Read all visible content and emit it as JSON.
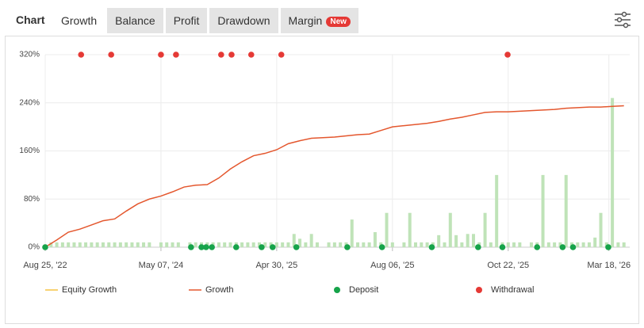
{
  "tabs": {
    "title": "Chart",
    "items": [
      "Growth",
      "Balance",
      "Profit",
      "Drawdown",
      "Margin"
    ],
    "active": 0,
    "badge": "New"
  },
  "chart_data": {
    "type": "line",
    "x": [
      0,
      2,
      4,
      6,
      8,
      10,
      12,
      14,
      16,
      18,
      20,
      22,
      24,
      26,
      28,
      30,
      32,
      34,
      36,
      38,
      40,
      42,
      44,
      46,
      48,
      50,
      52,
      54,
      56,
      58,
      60,
      62,
      64,
      66,
      68,
      70,
      72,
      74,
      76,
      78,
      80,
      82,
      84,
      86,
      88,
      90,
      92,
      94,
      96,
      98,
      100
    ],
    "series": [
      {
        "name": "Equity Growth",
        "color": "#f5c242",
        "values": [
          null,
          null,
          null,
          null,
          null,
          null,
          null,
          null,
          null,
          null,
          null,
          null,
          null,
          null,
          null,
          null,
          null,
          null,
          null,
          null,
          null,
          null,
          null,
          null,
          null,
          null,
          null,
          null,
          null,
          null,
          null,
          null,
          null,
          null,
          null,
          null,
          null,
          null,
          null,
          null,
          null,
          null,
          null,
          null,
          null,
          null,
          null,
          null,
          null,
          null,
          null
        ]
      },
      {
        "name": "Growth",
        "color": "#e4572e",
        "values": [
          0,
          12,
          25,
          30,
          37,
          44,
          47,
          60,
          72,
          80,
          85,
          92,
          100,
          103,
          104,
          115,
          130,
          142,
          152,
          156,
          162,
          172,
          177,
          181,
          182,
          183,
          185,
          187,
          188,
          194,
          200,
          202,
          204,
          206,
          209,
          213,
          216,
          220,
          224,
          225,
          225,
          226,
          227,
          228,
          229,
          231,
          232,
          233,
          233,
          234,
          235
        ]
      }
    ],
    "deposits": {
      "name": "Deposit",
      "color": "#16a34a",
      "x": [
        0,
        25.2,
        27,
        27.8,
        28.8,
        33,
        37.4,
        39.3,
        43.4,
        52.2,
        58.2,
        66.8,
        74.8,
        79,
        85,
        89.4,
        91.2,
        97.3
      ],
      "values": [
        0,
        0,
        0,
        0,
        0,
        0,
        0,
        0,
        0,
        0,
        0,
        0,
        0,
        0,
        0,
        0,
        0,
        0
      ]
    },
    "withdrawals": {
      "name": "Withdrawal",
      "color": "#e53935",
      "x": [
        6.2,
        11.4,
        20,
        22.6,
        30.4,
        32.2,
        35.6,
        40.8,
        79.9
      ],
      "values": [
        320,
        320,
        320,
        320,
        320,
        320,
        320,
        320,
        320
      ]
    },
    "bars": {
      "color": "#bfe3b8",
      "x": [
        1,
        2,
        3,
        4,
        5,
        6,
        7,
        8,
        9,
        10,
        11,
        12,
        13,
        14,
        15,
        16,
        17,
        18,
        19,
        20,
        21,
        22,
        23,
        24,
        25,
        26,
        27,
        28,
        29,
        30,
        31,
        32,
        33,
        34,
        35,
        36,
        37,
        38,
        39,
        40,
        41,
        42,
        43,
        44,
        45,
        46,
        47,
        48,
        49,
        50,
        51,
        52,
        53,
        54,
        55,
        56,
        57,
        58,
        59,
        60,
        61,
        62,
        63,
        64,
        65,
        66,
        67,
        68,
        69,
        70,
        71,
        72,
        73,
        74,
        75,
        76,
        77,
        78,
        79,
        80,
        81,
        82,
        83,
        84,
        85,
        86,
        87,
        88,
        89,
        90,
        91,
        92,
        93,
        94,
        95,
        96,
        97,
        98,
        99,
        100
      ],
      "values": [
        8,
        8,
        8,
        8,
        8,
        8,
        8,
        8,
        8,
        8,
        8,
        8,
        8,
        8,
        8,
        8,
        8,
        8,
        0,
        8,
        8,
        8,
        8,
        0,
        8,
        8,
        8,
        8,
        8,
        8,
        8,
        8,
        8,
        8,
        8,
        8,
        8,
        8,
        8,
        8,
        8,
        8,
        22,
        14,
        8,
        22,
        8,
        0,
        8,
        8,
        8,
        8,
        46,
        8,
        8,
        8,
        25,
        8,
        57,
        8,
        0,
        8,
        57,
        8,
        8,
        8,
        8,
        20,
        8,
        57,
        20,
        8,
        22,
        22,
        8,
        57,
        8,
        120,
        8,
        8,
        8,
        8,
        0,
        8,
        8,
        120,
        8,
        8,
        8,
        120,
        8,
        8,
        8,
        8,
        16,
        57,
        8,
        248,
        8,
        8
      ]
    },
    "xlim": [
      0,
      101
    ],
    "xticks": [
      {
        "value": 0,
        "label": "Aug 25, '22"
      },
      {
        "value": 20,
        "label": "May 07, '24"
      },
      {
        "value": 40,
        "label": "Apr 30, '25"
      },
      {
        "value": 60,
        "label": "Aug 06, '25"
      },
      {
        "value": 80,
        "label": "Oct 22, '25"
      },
      {
        "value": 97.4,
        "label": "Mar 18, '26"
      }
    ],
    "ylim": [
      0,
      320
    ],
    "yticks": [
      {
        "value": 0,
        "label": "0%"
      },
      {
        "value": 80,
        "label": "80%"
      },
      {
        "value": 160,
        "label": "160%"
      },
      {
        "value": 240,
        "label": "240%"
      },
      {
        "value": 320,
        "label": "320%"
      }
    ],
    "grid": true
  }
}
